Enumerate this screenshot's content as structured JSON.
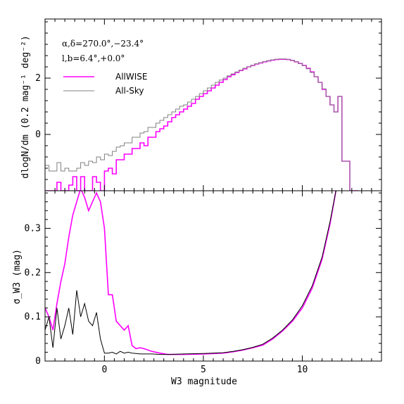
{
  "colors": {
    "allwise": "#ff00ff",
    "allsky": "#808080",
    "error_line": "#000000",
    "frame": "#000000"
  },
  "annotations": {
    "coords_alpha_delta": "α,δ=270.0°,−23.4°",
    "coords_l_b": "l,b=6.4°,+0.0°"
  },
  "chart_data": [
    {
      "type": "line",
      "drawstyle": "steps",
      "title": "",
      "xlabel": "",
      "ylabel": "dlogN/dm (0.2 mag⁻¹ deg⁻²)",
      "xlim": [
        -3,
        14
      ],
      "ylim": [
        -2.0,
        4.1
      ],
      "yticks": [
        0,
        2
      ],
      "ytick_labels": [
        "0",
        "2"
      ],
      "legend_position": "top-left",
      "series": [
        {
          "name": "AllWISE",
          "color": "#ff00ff",
          "x": [
            -3.0,
            -2.8,
            -2.6,
            -2.4,
            -2.2,
            -2.0,
            -1.8,
            -1.6,
            -1.4,
            -1.2,
            -1.0,
            -0.8,
            -0.6,
            -0.4,
            -0.2,
            0.0,
            0.2,
            0.4,
            0.6,
            0.8,
            1.0,
            1.2,
            1.4,
            1.6,
            1.8,
            2.0,
            2.2,
            2.4,
            2.6,
            2.8,
            3.0,
            3.2,
            3.4,
            3.6,
            3.8,
            4.0,
            4.2,
            4.4,
            4.6,
            4.8,
            5.0,
            5.2,
            5.4,
            5.6,
            5.8,
            6.0,
            6.2,
            6.4,
            6.6,
            6.8,
            7.0,
            7.2,
            7.4,
            7.6,
            7.8,
            8.0,
            8.2,
            8.4,
            8.6,
            8.8,
            9.0,
            9.2,
            9.4,
            9.6,
            9.8,
            10.0,
            10.2,
            10.4,
            10.6,
            10.8,
            11.0,
            11.2,
            11.4,
            11.6,
            11.8,
            12.0,
            12.2,
            12.4,
            12.6
          ],
          "y": [
            -2.0,
            -2.0,
            -2.0,
            -1.7,
            -2.0,
            -2.0,
            -1.8,
            -1.5,
            -2.0,
            -1.5,
            -2.0,
            -2.0,
            -1.5,
            -1.7,
            -2.0,
            -1.3,
            -1.2,
            -1.4,
            -0.9,
            -0.9,
            -0.7,
            -0.7,
            -0.5,
            -0.5,
            -0.3,
            -0.4,
            -0.1,
            -0.1,
            0.1,
            0.2,
            0.3,
            0.45,
            0.6,
            0.7,
            0.8,
            0.9,
            1.0,
            1.1,
            1.25,
            1.35,
            1.45,
            1.55,
            1.65,
            1.75,
            1.85,
            1.95,
            2.05,
            2.12,
            2.2,
            2.27,
            2.33,
            2.4,
            2.45,
            2.5,
            2.54,
            2.58,
            2.61,
            2.64,
            2.66,
            2.67,
            2.67,
            2.66,
            2.63,
            2.58,
            2.52,
            2.45,
            2.35,
            2.22,
            2.05,
            1.85,
            1.6,
            1.35,
            1.05,
            0.8,
            1.35,
            -0.95,
            -0.95,
            -2.0,
            -2.0
          ]
        },
        {
          "name": "All-Sky",
          "color": "#808080",
          "x": [
            -3.0,
            -2.8,
            -2.6,
            -2.4,
            -2.2,
            -2.0,
            -1.8,
            -1.6,
            -1.4,
            -1.2,
            -1.0,
            -0.8,
            -0.6,
            -0.4,
            -0.2,
            0.0,
            0.2,
            0.4,
            0.6,
            0.8,
            1.0,
            1.2,
            1.4,
            1.6,
            1.8,
            2.0,
            2.2,
            2.4,
            2.6,
            2.8,
            3.0,
            3.2,
            3.4,
            3.6,
            3.8,
            4.0,
            4.2,
            4.4,
            4.6,
            4.8,
            5.0,
            5.2,
            5.4,
            5.6,
            5.8,
            6.0,
            6.2,
            6.4,
            6.6,
            6.8,
            7.0,
            7.2,
            7.4,
            7.6,
            7.8,
            8.0,
            8.2,
            8.4,
            8.6,
            8.8,
            9.0,
            9.2,
            9.4,
            9.6,
            9.8,
            10.0,
            10.2,
            10.4,
            10.6,
            10.8,
            11.0,
            11.2,
            11.4,
            11.6,
            11.8,
            12.0,
            12.2,
            12.4,
            12.6
          ],
          "y": [
            -1.1,
            -1.3,
            -1.3,
            -1.0,
            -1.3,
            -1.2,
            -1.3,
            -1.3,
            -1.2,
            -1.0,
            -1.1,
            -0.95,
            -1.0,
            -0.8,
            -0.9,
            -0.7,
            -0.75,
            -0.6,
            -0.45,
            -0.4,
            -0.3,
            -0.3,
            -0.1,
            -0.1,
            0.05,
            0.1,
            0.25,
            0.25,
            0.4,
            0.5,
            0.6,
            0.7,
            0.8,
            0.9,
            1.0,
            1.05,
            1.15,
            1.25,
            1.35,
            1.45,
            1.55,
            1.65,
            1.75,
            1.85,
            1.93,
            2.0,
            2.08,
            2.15,
            2.22,
            2.28,
            2.35,
            2.4,
            2.46,
            2.51,
            2.55,
            2.59,
            2.62,
            2.65,
            2.67,
            2.68,
            2.68,
            2.66,
            2.63,
            2.58,
            2.52,
            2.44,
            2.33,
            2.2,
            2.05,
            1.85,
            1.62,
            1.35,
            1.05,
            0.8,
            1.35,
            -0.95,
            -0.95,
            -2.0,
            -2.0
          ]
        }
      ]
    },
    {
      "type": "line",
      "title": "",
      "xlabel": "W3 magnitude",
      "ylabel": "σ_W3 (mag)",
      "xlim": [
        -3,
        14
      ],
      "ylim": [
        0,
        0.385
      ],
      "xticks": [
        0,
        5,
        10
      ],
      "xtick_labels": [
        "0",
        "5",
        "10"
      ],
      "yticks": [
        0,
        0.1,
        0.2,
        0.3
      ],
      "ytick_labels": [
        "0",
        "0.1",
        "0.2",
        "0.3"
      ],
      "series": [
        {
          "color": "#ff00ff",
          "x": [
            -3.0,
            -2.8,
            -2.6,
            -2.4,
            -2.2,
            -2.0,
            -1.8,
            -1.6,
            -1.4,
            -1.2,
            -1.0,
            -0.8,
            -0.6,
            -0.4,
            -0.2,
            0.0,
            0.2,
            0.4,
            0.6,
            0.8,
            1.0,
            1.2,
            1.4,
            1.6,
            1.8,
            2.0,
            2.4,
            2.8,
            3.2,
            4.0,
            5.0,
            6.0,
            6.5,
            7.0,
            7.5,
            8.0,
            8.5,
            9.0,
            9.5,
            10.0,
            10.5,
            11.0,
            11.4,
            11.7
          ],
          "y": [
            0.12,
            0.1,
            0.07,
            0.13,
            0.18,
            0.22,
            0.28,
            0.33,
            0.36,
            0.39,
            0.37,
            0.34,
            0.36,
            0.38,
            0.36,
            0.3,
            0.15,
            0.15,
            0.09,
            0.08,
            0.07,
            0.08,
            0.035,
            0.028,
            0.03,
            0.028,
            0.022,
            0.018,
            0.015,
            0.015,
            0.016,
            0.018,
            0.021,
            0.025,
            0.03,
            0.036,
            0.05,
            0.068,
            0.09,
            0.12,
            0.165,
            0.23,
            0.31,
            0.385
          ]
        },
        {
          "color": "#000000",
          "x": [
            -3.0,
            -2.8,
            -2.6,
            -2.4,
            -2.2,
            -2.0,
            -1.8,
            -1.6,
            -1.4,
            -1.2,
            -1.0,
            -0.8,
            -0.6,
            -0.4,
            -0.2,
            0.0,
            0.2,
            0.4,
            0.6,
            0.8,
            1.0,
            1.2,
            1.4,
            1.6,
            1.8,
            2.0,
            2.4,
            2.8,
            3.2,
            4.0,
            5.0,
            6.0,
            6.5,
            7.0,
            7.5,
            8.0,
            8.5,
            9.0,
            9.5,
            10.0,
            10.5,
            11.0,
            11.4,
            11.7
          ],
          "y": [
            0.07,
            0.1,
            0.03,
            0.12,
            0.05,
            0.08,
            0.12,
            0.06,
            0.16,
            0.1,
            0.13,
            0.09,
            0.08,
            0.11,
            0.05,
            0.018,
            0.018,
            0.02,
            0.016,
            0.022,
            0.018,
            0.02,
            0.018,
            0.017,
            0.016,
            0.016,
            0.016,
            0.015,
            0.015,
            0.016,
            0.017,
            0.019,
            0.022,
            0.026,
            0.031,
            0.038,
            0.052,
            0.07,
            0.093,
            0.125,
            0.17,
            0.235,
            0.315,
            0.385
          ]
        }
      ]
    }
  ]
}
